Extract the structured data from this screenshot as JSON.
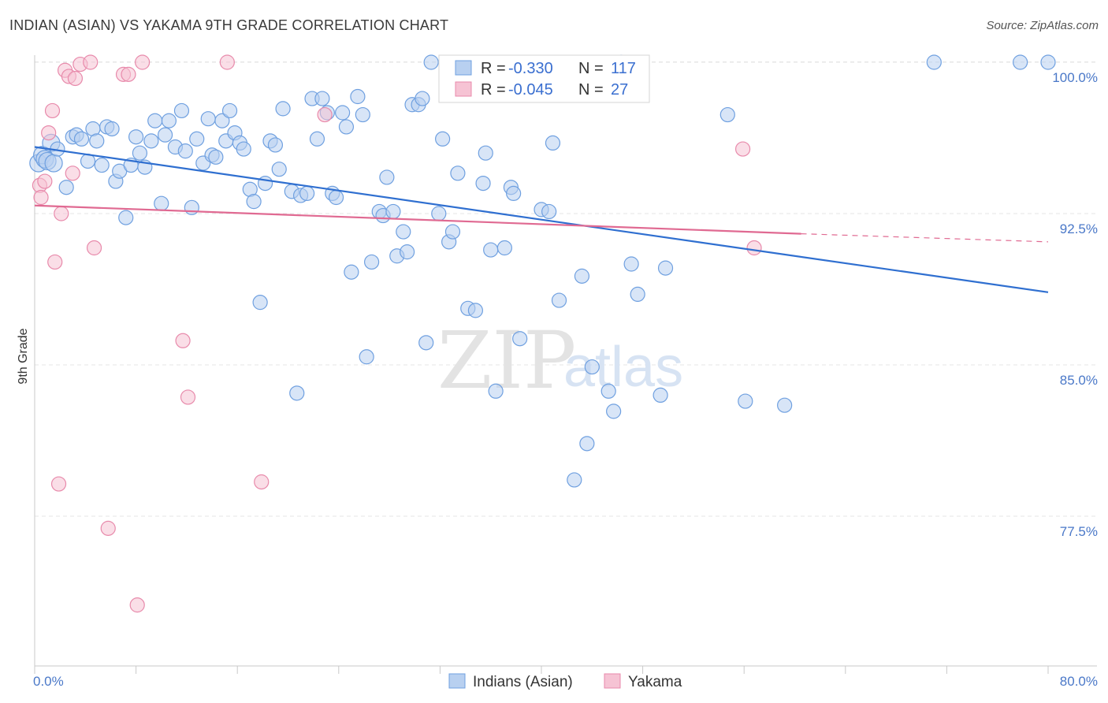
{
  "title": "INDIAN (ASIAN) VS YAKAMA 9TH GRADE CORRELATION CHART",
  "source": "Source: ZipAtlas.com",
  "watermark": {
    "zip": "ZIP",
    "atlas": "atlas"
  },
  "colors": {
    "blue": "#6fa0e0",
    "blue_fill": "#b8d0f0",
    "blue_line": "#2f6fd0",
    "pink": "#e88aab",
    "pink_fill": "#f6c3d4",
    "pink_line": "#e06a92",
    "grid": "#e6e6e6",
    "axis_text": "#4a78c8"
  },
  "legend": {
    "rows": [
      {
        "r_label": "R =",
        "r_value": "-0.330",
        "n_label": "N =",
        "n_value": "117"
      },
      {
        "r_label": "R =",
        "r_value": "-0.045",
        "n_label": "N =",
        "n_value": "27"
      }
    ]
  },
  "chart_data": {
    "type": "scatter",
    "xlabel": "",
    "ylabel": "9th Grade",
    "xlim": [
      0,
      80
    ],
    "ylim": [
      71.5,
      101
    ],
    "x_tick_labels": [
      {
        "value": 0,
        "label": "0.0%"
      },
      {
        "value": 80,
        "label": "80.0%"
      }
    ],
    "y_tick_labels": [
      {
        "value": 100,
        "label": "100.0%"
      },
      {
        "value": 92.5,
        "label": "92.5%"
      },
      {
        "value": 85,
        "label": "85.0%"
      },
      {
        "value": 77.5,
        "label": "77.5%"
      }
    ],
    "grid": true,
    "legend_position": "top-center",
    "series": [
      {
        "name": "Indians (Asian)",
        "color": "#6fa0e0",
        "trend": {
          "x0": 0,
          "y0": 95.8,
          "x1": 80,
          "y1": 88.6
        },
        "points": [
          [
            0.3,
            95.0
          ],
          [
            0.6,
            95.4
          ],
          [
            0.8,
            95.2
          ],
          [
            1.0,
            95.1
          ],
          [
            1.3,
            96.0
          ],
          [
            1.5,
            95.0
          ],
          [
            1.8,
            95.7
          ],
          [
            2.5,
            93.8
          ],
          [
            3.0,
            96.3
          ],
          [
            3.3,
            96.4
          ],
          [
            3.7,
            96.2
          ],
          [
            4.2,
            95.1
          ],
          [
            4.6,
            96.7
          ],
          [
            4.9,
            96.1
          ],
          [
            5.3,
            94.9
          ],
          [
            5.7,
            96.8
          ],
          [
            6.1,
            96.7
          ],
          [
            6.4,
            94.1
          ],
          [
            6.7,
            94.6
          ],
          [
            7.2,
            92.3
          ],
          [
            7.6,
            94.9
          ],
          [
            8.0,
            96.3
          ],
          [
            8.3,
            95.5
          ],
          [
            8.7,
            94.8
          ],
          [
            9.2,
            96.1
          ],
          [
            9.5,
            97.1
          ],
          [
            10.0,
            93.0
          ],
          [
            10.3,
            96.4
          ],
          [
            10.6,
            97.1
          ],
          [
            11.1,
            95.8
          ],
          [
            11.6,
            97.6
          ],
          [
            11.9,
            95.6
          ],
          [
            12.4,
            92.8
          ],
          [
            12.8,
            96.2
          ],
          [
            13.3,
            95.0
          ],
          [
            13.7,
            97.2
          ],
          [
            14.0,
            95.4
          ],
          [
            14.3,
            95.3
          ],
          [
            14.8,
            97.1
          ],
          [
            15.1,
            96.1
          ],
          [
            15.4,
            97.6
          ],
          [
            15.8,
            96.5
          ],
          [
            16.2,
            96.0
          ],
          [
            16.5,
            95.7
          ],
          [
            17.0,
            93.7
          ],
          [
            17.3,
            93.1
          ],
          [
            17.8,
            88.1
          ],
          [
            18.2,
            94.0
          ],
          [
            18.6,
            96.1
          ],
          [
            19.0,
            95.9
          ],
          [
            19.3,
            94.7
          ],
          [
            19.6,
            97.7
          ],
          [
            20.3,
            93.6
          ],
          [
            20.7,
            83.6
          ],
          [
            21.0,
            93.4
          ],
          [
            21.5,
            93.5
          ],
          [
            21.9,
            98.2
          ],
          [
            22.3,
            96.2
          ],
          [
            22.7,
            98.2
          ],
          [
            23.1,
            97.5
          ],
          [
            23.5,
            93.5
          ],
          [
            23.8,
            93.3
          ],
          [
            24.3,
            97.5
          ],
          [
            24.6,
            96.8
          ],
          [
            25.0,
            89.6
          ],
          [
            25.5,
            98.3
          ],
          [
            25.9,
            97.4
          ],
          [
            26.2,
            85.4
          ],
          [
            26.6,
            90.1
          ],
          [
            27.2,
            92.6
          ],
          [
            27.5,
            92.4
          ],
          [
            27.8,
            94.3
          ],
          [
            28.3,
            92.6
          ],
          [
            28.6,
            90.4
          ],
          [
            29.1,
            91.6
          ],
          [
            29.4,
            90.6
          ],
          [
            29.8,
            97.9
          ],
          [
            30.3,
            97.9
          ],
          [
            30.6,
            98.2
          ],
          [
            30.9,
            86.1
          ],
          [
            31.3,
            100.0
          ],
          [
            31.9,
            92.5
          ],
          [
            32.2,
            96.2
          ],
          [
            32.7,
            91.1
          ],
          [
            33.0,
            91.6
          ],
          [
            33.4,
            94.5
          ],
          [
            34.2,
            87.8
          ],
          [
            34.8,
            87.7
          ],
          [
            35.4,
            94.0
          ],
          [
            35.6,
            95.5
          ],
          [
            36.0,
            90.7
          ],
          [
            36.4,
            83.7
          ],
          [
            37.1,
            90.8
          ],
          [
            37.6,
            93.8
          ],
          [
            37.8,
            93.5
          ],
          [
            38.3,
            86.3
          ],
          [
            40.0,
            92.7
          ],
          [
            40.6,
            92.6
          ],
          [
            40.9,
            96.0
          ],
          [
            41.4,
            88.2
          ],
          [
            42.6,
            79.3
          ],
          [
            43.2,
            89.4
          ],
          [
            43.6,
            81.1
          ],
          [
            44.0,
            84.9
          ],
          [
            45.3,
            83.7
          ],
          [
            45.7,
            82.7
          ],
          [
            46.3,
            100.0
          ],
          [
            47.1,
            90.0
          ],
          [
            47.6,
            88.5
          ],
          [
            49.4,
            83.5
          ],
          [
            49.8,
            89.8
          ],
          [
            54.7,
            97.4
          ],
          [
            56.1,
            83.2
          ],
          [
            59.2,
            83.0
          ],
          [
            71.0,
            100.0
          ],
          [
            77.8,
            100.0
          ],
          [
            80.0,
            100.0
          ]
        ]
      },
      {
        "name": "Yakama",
        "color": "#e88aab",
        "trend": {
          "x0": 0,
          "y0": 92.9,
          "x1": 60.5,
          "y1": 91.5,
          "dash_x1": 80,
          "dash_y1": 91.1
        },
        "points": [
          [
            0.4,
            93.9
          ],
          [
            0.5,
            93.3
          ],
          [
            0.8,
            94.1
          ],
          [
            1.1,
            96.5
          ],
          [
            1.4,
            97.6
          ],
          [
            1.6,
            90.1
          ],
          [
            1.9,
            79.1
          ],
          [
            2.1,
            92.5
          ],
          [
            2.4,
            99.6
          ],
          [
            2.7,
            99.3
          ],
          [
            3.0,
            94.5
          ],
          [
            3.2,
            99.2
          ],
          [
            3.6,
            99.9
          ],
          [
            4.4,
            100.0
          ],
          [
            4.7,
            90.8
          ],
          [
            5.8,
            76.9
          ],
          [
            7.0,
            99.4
          ],
          [
            7.4,
            99.4
          ],
          [
            8.1,
            73.1
          ],
          [
            8.5,
            100.0
          ],
          [
            11.7,
            86.2
          ],
          [
            12.1,
            83.4
          ],
          [
            15.2,
            100.0
          ],
          [
            17.9,
            79.2
          ],
          [
            22.9,
            97.4
          ],
          [
            55.9,
            95.7
          ],
          [
            56.8,
            90.8
          ]
        ]
      }
    ]
  },
  "bottom_legend": [
    {
      "label": "Indians (Asian)"
    },
    {
      "label": "Yakama"
    }
  ]
}
